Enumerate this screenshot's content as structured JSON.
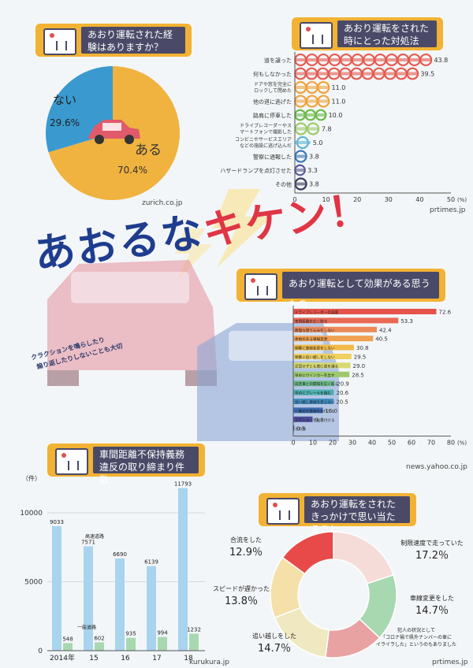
{
  "main_title": {
    "part1": "あおるな",
    "part2": "キケン！"
  },
  "warning_note": {
    "line1": "クラクションを鳴らしたり",
    "line2": "煽り返したりしないことも大切"
  },
  "panel1": {
    "title": "あおり運転された経験はありますか？",
    "source": "zurich.co.jp"
  },
  "panel2": {
    "title": "あおり運転をされた時にとった対処法",
    "source": "prtimes.jp"
  },
  "panel3": {
    "title": "あおり運転として効果がある思うもの",
    "source": "news.yahoo.co.jp"
  },
  "panel4": {
    "title": "車間距離不保持義務違反の取り締まり件数",
    "source": "kurukura.jp"
  },
  "panel5": {
    "title": "あおり運転をされたきっかけで思い当たること",
    "source": "prtimes.jp"
  },
  "chart_data": [
    {
      "type": "pie",
      "labels": [
        "ある",
        "ない"
      ],
      "values": [
        70.4,
        29.6
      ],
      "value_labels": [
        "70.4%",
        "29.6%"
      ],
      "colors": [
        "#f0b33f",
        "#3a9ad0"
      ]
    },
    {
      "type": "bar",
      "orientation": "horizontal",
      "categories": [
        "道を譲った",
        "何もしなかった",
        "ドアや窓を完全にロックして閉めた",
        "他の道に逃げた",
        "路肩に停車した",
        "ドライブレコーダーやスマートフォンで撮影した",
        "コンビニやサービスエリアなどの施設に逃げ込んだ",
        "警察に通報した",
        "ハザードランプを点灯させた",
        "その他"
      ],
      "values": [
        43.8,
        39.5,
        11.0,
        11.0,
        10.0,
        7.8,
        5.0,
        3.8,
        3.3,
        3.8
      ],
      "value_labels": [
        "43.8",
        "39.5",
        "11.0",
        "11.0",
        "10.0",
        "7.8",
        "5.0",
        "3.8",
        "3.3",
        "3.8"
      ],
      "xlim": [
        0,
        50
      ],
      "xticks": [
        "0",
        "10",
        "20",
        "30",
        "40",
        "50"
      ],
      "xunit": "(%)",
      "colors": [
        "#e55a4f",
        "#e55a4f",
        "#f0a33a",
        "#f0a33a",
        "#6cbb4a",
        "#9dcc6a",
        "#5cb6d6",
        "#3a78b8",
        "#5a5a9a",
        "#3a3a5a"
      ]
    },
    {
      "type": "bar",
      "orientation": "horizontal",
      "categories": [
        "ドライブレコーダーの設置",
        "車間距離を広く取る",
        "無理な割り込みをしない",
        "余裕のある車線変更",
        "頻繁に車線変更をしない",
        "頻繁に追い越しをしない",
        "迂回せずとも車に道を譲る",
        "早めにウインカーを出す",
        "前走車との間隔を広く取る",
        "早めにブレーキを踏む",
        "追い越し車線を走らない",
        "一番左の車線を走行する",
        "ステッカーを貼り付ける",
        "その他"
      ],
      "values": [
        72.6,
        53.3,
        42.4,
        40.5,
        30.8,
        29.5,
        29.0,
        28.5,
        20.9,
        20.6,
        20.5,
        15.0,
        9.8,
        0.5
      ],
      "value_labels": [
        "72.6",
        "53.3",
        "42.4",
        "40.5",
        "30.8",
        "29.5",
        "29.0",
        "28.5",
        "20.9",
        "20.6",
        "20.5",
        "15.0",
        "9.8",
        "0.5"
      ],
      "xlim": [
        0,
        80
      ],
      "xticks": [
        "0",
        "10",
        "20",
        "30",
        "40",
        "50",
        "60",
        "70",
        "80"
      ],
      "xunit": "(%)",
      "colors": [
        "#e5534b",
        "#e86a55",
        "#ec8a5a",
        "#f0a050",
        "#f2bb4a",
        "#efd060",
        "#d8d870",
        "#9ec96c",
        "#6cbb8a",
        "#4cb0b0",
        "#3f8fc0",
        "#3a6ab0",
        "#4a4a98",
        "#3a3a6a"
      ]
    },
    {
      "type": "bar",
      "categories": [
        "2014年",
        "15",
        "16",
        "17",
        "18"
      ],
      "series": [
        {
          "name": "高速道路",
          "values": [
            9033,
            7571,
            6690,
            6139,
            11793
          ]
        },
        {
          "name": "一般道路",
          "values": [
            548,
            602,
            935,
            994,
            1232
          ]
        }
      ],
      "ylim": [
        0,
        12000
      ],
      "yticks": [
        "0",
        "5000",
        "10000"
      ],
      "yunit": "（件）",
      "colors": [
        "#a8d4ee",
        "#a8d8b0"
      ]
    },
    {
      "type": "pie",
      "style": "donut",
      "labels": [
        "制限速度で走っていた",
        "車線変更をした",
        "犯人の状況として「コロナ禍で県外ナンバーの車にイライラした」というのもありました",
        "追い越しをした",
        "スピードが遅かった",
        "合流をした"
      ],
      "values": [
        17.2,
        14.7,
        13.0,
        14.7,
        13.8,
        12.9
      ],
      "value_labels": [
        "17.2％",
        "14.7％",
        "",
        "14.7％",
        "13.8％",
        "12.9％"
      ],
      "colors": [
        "#f5dcd8",
        "#a8d8b0",
        "#e8a2a2",
        "#f0e8c0",
        "#f4e0a8",
        "#e84a4a"
      ]
    }
  ]
}
